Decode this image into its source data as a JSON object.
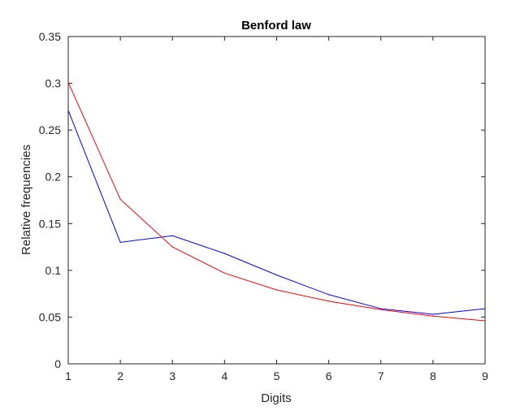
{
  "chart_data": {
    "type": "line",
    "title": "Benford law",
    "xlabel": "Digits",
    "ylabel": "Relative frequencies",
    "x": [
      1,
      2,
      3,
      4,
      5,
      6,
      7,
      8,
      9
    ],
    "xlim": [
      1,
      9
    ],
    "ylim": [
      0,
      0.35
    ],
    "xticks": [
      "1",
      "2",
      "3",
      "4",
      "5",
      "6",
      "7",
      "8",
      "9"
    ],
    "yticks": [
      "0",
      "0.05",
      "0.1",
      "0.15",
      "0.2",
      "0.25",
      "0.3",
      "0.35"
    ],
    "grid": false,
    "legend": "none",
    "series": [
      {
        "color": "#0000ff",
        "values": [
          0.271,
          0.13,
          0.137,
          0.118,
          0.095,
          0.074,
          0.059,
          0.053,
          0.059
        ]
      },
      {
        "color": "#ff0000",
        "values": [
          0.301,
          0.176,
          0.125,
          0.097,
          0.079,
          0.067,
          0.058,
          0.051,
          0.046
        ]
      }
    ]
  }
}
